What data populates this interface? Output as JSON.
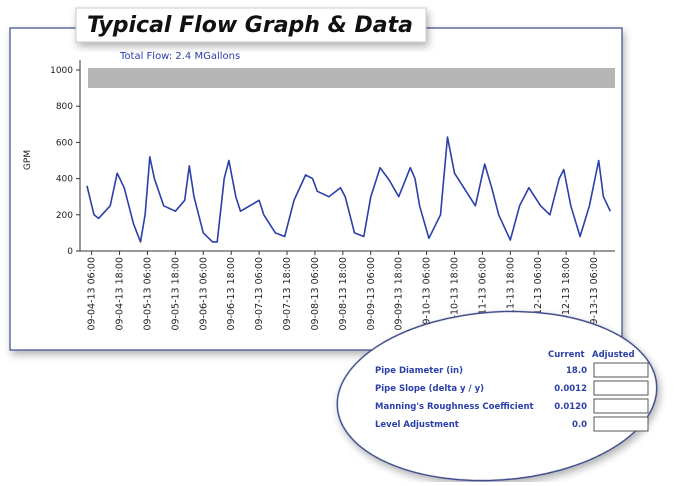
{
  "header": {
    "title": "Typical Flow Graph & Data"
  },
  "chart_data": {
    "type": "line",
    "subtitle": "Total Flow: 2.4 MGallons",
    "y_label": "GPM",
    "color": "#2b3fa8",
    "x": [
      -2,
      1,
      3,
      8,
      11,
      14,
      18,
      21,
      23,
      25,
      27,
      31,
      36,
      40,
      42,
      44,
      48,
      52,
      54,
      57,
      59,
      62,
      64,
      68,
      72,
      74,
      79,
      83,
      87,
      92,
      95,
      97,
      102,
      107,
      109,
      113,
      117,
      120,
      124,
      128,
      132,
      137,
      139,
      141,
      145,
      150,
      153,
      156,
      160,
      165,
      169,
      172,
      175,
      180,
      184,
      188,
      193,
      197,
      201,
      203,
      206,
      210,
      214,
      218,
      220,
      223
    ],
    "values": [
      360,
      200,
      180,
      250,
      430,
      350,
      150,
      50,
      200,
      520,
      400,
      250,
      220,
      280,
      470,
      300,
      100,
      50,
      50,
      400,
      500,
      300,
      220,
      250,
      280,
      200,
      100,
      80,
      280,
      420,
      400,
      330,
      300,
      350,
      300,
      100,
      80,
      300,
      460,
      390,
      300,
      460,
      400,
      250,
      70,
      200,
      630,
      430,
      350,
      250,
      480,
      350,
      200,
      60,
      250,
      350,
      250,
      200,
      400,
      450,
      250,
      80,
      250,
      500,
      300,
      220
    ],
    "xlim": [
      -5,
      225
    ],
    "ylim": [
      0,
      1000
    ],
    "yticks": [
      0,
      200,
      400,
      600,
      800,
      1000
    ],
    "xticks": [
      {
        "value": 0,
        "label": "09-04-13 06:00"
      },
      {
        "value": 12,
        "label": "09-04-13 18:00"
      },
      {
        "value": 24,
        "label": "09-05-13 06:00"
      },
      {
        "value": 36,
        "label": "09-05-13 18:00"
      },
      {
        "value": 48,
        "label": "09-06-13 06:00"
      },
      {
        "value": 60,
        "label": "09-06-13 18:00"
      },
      {
        "value": 72,
        "label": "09-07-13 06:00"
      },
      {
        "value": 84,
        "label": "09-07-13 18:00"
      },
      {
        "value": 96,
        "label": "09-08-13 06:00"
      },
      {
        "value": 108,
        "label": "09-08-13 18:00"
      },
      {
        "value": 120,
        "label": "09-09-13 06:00"
      },
      {
        "value": 132,
        "label": "09-09-13 18:00"
      },
      {
        "value": 144,
        "label": "09-10-13 06:00"
      },
      {
        "value": 156,
        "label": "09-10-13 18:00"
      },
      {
        "value": 168,
        "label": "09-11-13 06:00"
      },
      {
        "value": 180,
        "label": "09-11-13 18:00"
      },
      {
        "value": 192,
        "label": "09-12-13 06:00"
      },
      {
        "value": 204,
        "label": "09-12-13 18:00"
      },
      {
        "value": 216,
        "label": "09-13-13 06:00"
      }
    ]
  },
  "table": {
    "columns": [
      "Current",
      "Adjusted"
    ],
    "rows": [
      [
        "Pipe Diameter (in)",
        "18.0"
      ],
      [
        "Pipe Slope (delta y / y)",
        "0.0012"
      ],
      [
        "Manning's Roughness Coefficient",
        "0.0120"
      ],
      [
        "Level Adjustment",
        "0.0"
      ]
    ]
  }
}
